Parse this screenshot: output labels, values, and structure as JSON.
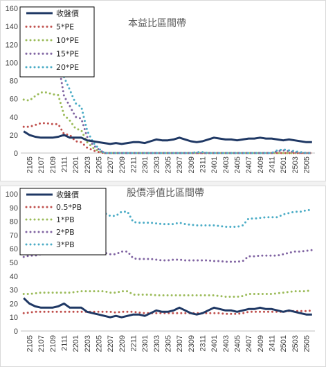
{
  "chart_data": [
    {
      "type": "line",
      "title": "本益比區間帶",
      "xlabel": "",
      "ylabel": "",
      "ylim": [
        0,
        160
      ],
      "yticks": [
        0,
        20,
        40,
        60,
        80,
        100,
        120,
        140,
        160
      ],
      "grid": false,
      "legend_placement": "top-left",
      "x_tick_labels": [
        "2105",
        "2107",
        "2109",
        "2111",
        "2201",
        "2203",
        "2205",
        "2207",
        "2209",
        "2211",
        "2301",
        "2303",
        "2305",
        "2307",
        "2309",
        "2311",
        "2401",
        "2403",
        "2405",
        "2407",
        "2409",
        "2411",
        "2501",
        "2503",
        "2505"
      ],
      "x": [
        "2104",
        "2105",
        "2106",
        "2107",
        "2108",
        "2109",
        "2110",
        "2111",
        "2112",
        "2201",
        "2202",
        "2203",
        "2204",
        "2205",
        "2206",
        "2207",
        "2208",
        "2209",
        "2210",
        "2211",
        "2212",
        "2301",
        "2302",
        "2303",
        "2304",
        "2305",
        "2306",
        "2307",
        "2308",
        "2309",
        "2310",
        "2311",
        "2312",
        "2401",
        "2402",
        "2403",
        "2404",
        "2405",
        "2406",
        "2407",
        "2408",
        "2409",
        "2410",
        "2411",
        "2412",
        "2501",
        "2502",
        "2503",
        "2504",
        "2505",
        "2506"
      ],
      "series": [
        {
          "name": "收盤價",
          "color": "#1f3864",
          "style": "solid",
          "values": [
            24,
            20,
            18,
            17,
            17,
            17,
            18,
            20,
            17,
            17,
            17,
            14,
            13,
            12,
            11,
            10,
            11,
            10,
            11,
            12,
            12,
            11,
            13,
            15,
            14,
            14,
            15,
            17,
            15,
            13,
            12,
            13,
            15,
            17,
            16,
            15,
            15,
            14,
            15,
            16,
            16,
            17,
            16,
            16,
            15,
            14,
            15,
            14,
            13,
            12,
            12
          ]
        },
        {
          "name": "5*PE",
          "color": "#c0504d",
          "style": "dotted",
          "values": [
            29,
            29,
            31,
            33,
            33,
            32,
            32,
            21,
            20,
            13,
            12,
            6,
            3,
            1,
            0,
            0,
            0,
            0,
            0,
            0,
            0,
            0,
            0,
            0,
            0,
            0,
            0,
            0,
            0,
            0,
            0,
            0,
            0,
            0,
            0,
            0,
            0,
            0,
            0,
            0,
            0,
            0,
            0,
            0,
            0,
            0,
            0,
            0,
            0,
            0,
            0
          ]
        },
        {
          "name": "10*PE",
          "color": "#9bbb59",
          "style": "dotted",
          "values": [
            59,
            58,
            63,
            67,
            67,
            65,
            64,
            42,
            36,
            27,
            25,
            12,
            6,
            2,
            0,
            0,
            0,
            0,
            0,
            0,
            0,
            0,
            0,
            0,
            0,
            0,
            0,
            0,
            0,
            0,
            0,
            0,
            0,
            0,
            0,
            0,
            0,
            0,
            0,
            0,
            0,
            0,
            0,
            0,
            0,
            0,
            0,
            0,
            0,
            0,
            0
          ]
        },
        {
          "name": "15*PE",
          "color": "#8064a2",
          "style": "dotted",
          "values": [
            null,
            null,
            null,
            null,
            null,
            null,
            100,
            63,
            52,
            40,
            38,
            18,
            9,
            4,
            0,
            0,
            0,
            0,
            0,
            0,
            0,
            0,
            0,
            0,
            0,
            0,
            0,
            0,
            0,
            0,
            0,
            0,
            0,
            0,
            0,
            0,
            0,
            0,
            0,
            0,
            0,
            0,
            0,
            0,
            2,
            3,
            2,
            1,
            0,
            0,
            0
          ]
        },
        {
          "name": "20*PE",
          "color": "#4bacc6",
          "style": "dotted",
          "values": [
            null,
            null,
            null,
            null,
            null,
            null,
            null,
            84,
            70,
            55,
            51,
            25,
            12,
            5,
            0,
            0,
            0,
            0,
            0,
            0,
            0,
            0,
            0,
            0,
            0,
            0,
            0,
            0,
            0,
            0,
            1,
            1,
            0,
            0,
            0,
            0,
            0,
            0,
            0,
            0,
            0,
            0,
            0,
            0,
            3,
            4,
            3,
            2,
            1,
            0,
            0
          ]
        }
      ]
    },
    {
      "type": "line",
      "title": "股價淨值比區間帶",
      "xlabel": "",
      "ylabel": "",
      "ylim": [
        0,
        100
      ],
      "yticks": [
        0,
        10,
        20,
        30,
        40,
        50,
        60,
        70,
        80,
        90,
        100
      ],
      "grid": false,
      "legend_placement": "top-left",
      "x_tick_labels": [
        "2105",
        "2107",
        "2109",
        "2111",
        "2201",
        "2203",
        "2205",
        "2207",
        "2209",
        "2211",
        "2301",
        "2303",
        "2305",
        "2307",
        "2309",
        "2311",
        "2401",
        "2403",
        "2405",
        "2407",
        "2409",
        "2411",
        "2501",
        "2503",
        "2505"
      ],
      "x": [
        "2104",
        "2105",
        "2106",
        "2107",
        "2108",
        "2109",
        "2110",
        "2111",
        "2112",
        "2201",
        "2202",
        "2203",
        "2204",
        "2205",
        "2206",
        "2207",
        "2208",
        "2209",
        "2210",
        "2211",
        "2212",
        "2301",
        "2302",
        "2303",
        "2304",
        "2305",
        "2306",
        "2307",
        "2308",
        "2309",
        "2310",
        "2311",
        "2312",
        "2401",
        "2402",
        "2403",
        "2404",
        "2405",
        "2406",
        "2407",
        "2408",
        "2409",
        "2410",
        "2411",
        "2412",
        "2501",
        "2502",
        "2503",
        "2504",
        "2505",
        "2506"
      ],
      "series": [
        {
          "name": "收盤價",
          "color": "#1f3864",
          "style": "solid",
          "values": [
            24,
            20,
            18,
            17,
            17,
            17,
            18,
            20,
            17,
            17,
            17,
            14,
            13,
            12,
            11,
            10,
            11,
            10,
            11,
            12,
            12,
            11,
            13,
            15,
            14,
            14,
            15,
            17,
            15,
            13,
            12,
            13,
            15,
            17,
            16,
            15,
            15,
            14,
            15,
            16,
            16,
            17,
            16,
            16,
            15,
            14,
            15,
            14,
            13,
            12,
            12
          ]
        },
        {
          "name": "0.5*PB",
          "color": "#c0504d",
          "style": "dotted",
          "values": [
            13,
            13.5,
            14,
            14,
            14,
            14,
            14,
            14,
            14,
            14,
            14,
            14,
            14,
            14,
            14,
            14,
            13.5,
            14,
            14,
            14,
            13.5,
            13,
            13,
            13,
            13,
            13,
            13,
            13,
            13,
            13,
            13,
            13,
            13,
            13,
            13,
            12.5,
            12.5,
            12.5,
            13,
            14,
            14,
            14,
            14,
            14,
            14,
            14,
            14.5,
            14.5,
            14.5,
            14.5,
            15
          ]
        },
        {
          "name": "1*PB",
          "color": "#9bbb59",
          "style": "dotted",
          "values": [
            27,
            27,
            27.5,
            28,
            28,
            28,
            28,
            28,
            28,
            28.5,
            29,
            29,
            29,
            29,
            29,
            28,
            28,
            29,
            29,
            26.5,
            26.5,
            26.5,
            26.5,
            26,
            26,
            26,
            26,
            26,
            26,
            26,
            26,
            26,
            26,
            26,
            25.5,
            25,
            25,
            25,
            25.5,
            27,
            27,
            27,
            27,
            27,
            27.5,
            28,
            28.5,
            29,
            29,
            29,
            30
          ]
        },
        {
          "name": "2*PB",
          "color": "#8064a2",
          "style": "dotted",
          "values": [
            54,
            55,
            55,
            56,
            56.5,
            56.5,
            56.5,
            56.5,
            56.5,
            57,
            57,
            57,
            57,
            57,
            57,
            56,
            56,
            58,
            58,
            53,
            52.5,
            52.5,
            52.5,
            52,
            51.5,
            51.5,
            52,
            52,
            51.5,
            51.5,
            51.5,
            51.5,
            51.5,
            51,
            51,
            50.5,
            50.5,
            50.5,
            51,
            54.5,
            54.5,
            55,
            55,
            55,
            55,
            56,
            57,
            58,
            58,
            58.5,
            59
          ]
        },
        {
          "name": "3*PB",
          "color": "#4bacc6",
          "style": "dotted",
          "values": [
            82,
            82,
            83,
            84,
            85,
            85,
            85,
            85,
            85,
            86,
            86,
            86,
            86,
            86,
            86,
            84,
            84,
            87,
            87,
            79.5,
            79,
            79,
            79,
            78.5,
            78,
            78,
            78,
            79,
            78,
            77.5,
            77,
            77,
            77,
            77,
            76.5,
            76,
            76,
            76,
            77,
            82,
            82,
            82.5,
            83,
            83,
            83,
            85,
            86,
            87,
            87,
            88,
            88.5
          ]
        }
      ]
    }
  ]
}
